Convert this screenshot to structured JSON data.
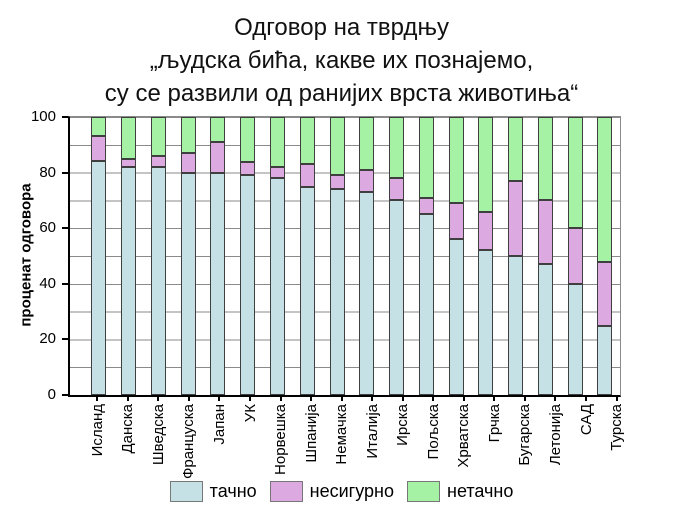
{
  "title": {
    "line1": "Одговор на тврдњу",
    "line2": "„људска бића, какве их познајемо,",
    "line3": "су се развили од ранијих врста животиња“"
  },
  "chart_data": {
    "type": "bar",
    "stacked": true,
    "orientation": "vertical",
    "categories": [
      "Исланд",
      "Данска",
      "Шведска",
      "Француска",
      "Јапан",
      "УК",
      "Норвешка",
      "Шпанија",
      "Немачка",
      "Италија",
      "Ирска",
      "Пољска",
      "Хрватска",
      "Грчка",
      "Бугарска",
      "Летонија",
      "САД",
      "Турска"
    ],
    "series": [
      {
        "name": "тачно",
        "color": "#c5e1e5",
        "values": [
          84,
          82,
          82,
          80,
          80,
          79,
          78,
          75,
          74,
          73,
          70,
          65,
          56,
          52,
          50,
          47,
          40,
          25
        ]
      },
      {
        "name": "несигурно",
        "color": "#dcaae0",
        "values": [
          9,
          3,
          4,
          7,
          11,
          5,
          4,
          8,
          5,
          8,
          8,
          6,
          13,
          14,
          27,
          23,
          20,
          23
        ]
      },
      {
        "name": "нетачно",
        "color": "#a5f2a5",
        "values": [
          7,
          15,
          14,
          13,
          9,
          16,
          18,
          17,
          21,
          19,
          22,
          29,
          31,
          34,
          23,
          30,
          40,
          52
        ]
      }
    ],
    "ylabel": "проценат одговора",
    "xlabel": "",
    "ylim": [
      0,
      100
    ],
    "yticks": [
      0,
      20,
      40,
      60,
      80,
      100
    ],
    "grid": true,
    "grid_step": 10,
    "legend_position": "bottom",
    "bar_outline_color": "#3f3f3f",
    "gridline_color": "#8a8a8a"
  }
}
